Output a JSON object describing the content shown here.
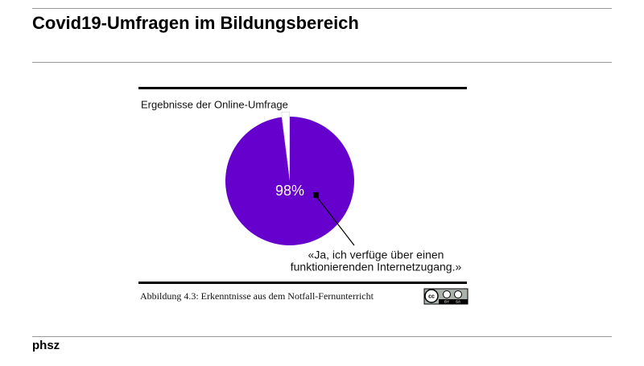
{
  "slide_title": "Covid19-Umfragen  im Bildungsbereich",
  "footer": "phsz",
  "chart_data": {
    "type": "pie",
    "subtitle": "Ergebnisse der Online-Umfrage",
    "values": [
      98,
      2
    ],
    "value_labels": [
      "98%",
      null
    ],
    "colors": [
      "#6600cc",
      "#ffffff"
    ],
    "annotation": [
      "«Ja, ich verfüge über einen",
      "funktionierenden Internetzugang.»"
    ],
    "caption": "Abbildung 4.3: Erkenntnisse aus dem Notfall-Fernunterricht"
  },
  "license": {
    "cc": "cc",
    "by": "BY",
    "sa": "SA"
  }
}
